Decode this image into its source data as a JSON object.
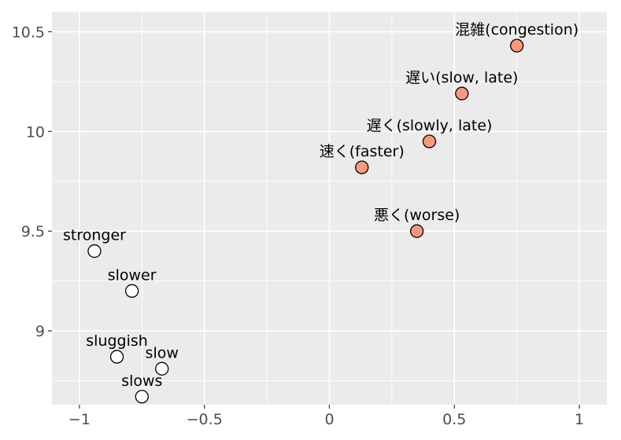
{
  "chart_data": {
    "type": "scatter",
    "title": "",
    "xlabel": "",
    "ylabel": "",
    "xlim": [
      -1.11,
      1.11
    ],
    "ylim": [
      8.63,
      10.6
    ],
    "x_ticks": [
      {
        "value": -1,
        "label": "−1"
      },
      {
        "value": -0.5,
        "label": "−0.5"
      },
      {
        "value": 0,
        "label": "0"
      },
      {
        "value": 0.5,
        "label": "0.5"
      },
      {
        "value": 1,
        "label": "1"
      }
    ],
    "y_ticks": [
      {
        "value": 9,
        "label": "9"
      },
      {
        "value": 9.5,
        "label": "9.5"
      },
      {
        "value": 10,
        "label": "10"
      },
      {
        "value": 10.5,
        "label": "10.5"
      }
    ],
    "grid": true,
    "panel_color": "#ebebeb",
    "grid_color": "#ffffff",
    "groups": {
      "english": {
        "fill": "#ffffff",
        "stroke": "#000000"
      },
      "japanese": {
        "fill": "#f8997b",
        "stroke": "#000000"
      }
    },
    "points": [
      {
        "label": "混雑(congestion)",
        "x": 0.75,
        "y": 10.43,
        "group": "japanese"
      },
      {
        "label": "遅い(slow, late)",
        "x": 0.53,
        "y": 10.19,
        "group": "japanese"
      },
      {
        "label": "遅く(slowly, late)",
        "x": 0.4,
        "y": 9.95,
        "group": "japanese"
      },
      {
        "label": "速く(faster)",
        "x": 0.13,
        "y": 9.82,
        "group": "japanese"
      },
      {
        "label": "悪く(worse)",
        "x": 0.35,
        "y": 9.5,
        "group": "japanese"
      },
      {
        "label": "stronger",
        "x": -0.94,
        "y": 9.4,
        "group": "english"
      },
      {
        "label": "slower",
        "x": -0.79,
        "y": 9.2,
        "group": "english"
      },
      {
        "label": "sluggish",
        "x": -0.85,
        "y": 8.87,
        "group": "english"
      },
      {
        "label": "slow",
        "x": -0.67,
        "y": 8.81,
        "group": "english"
      },
      {
        "label": "slows",
        "x": -0.75,
        "y": 8.67,
        "group": "english"
      }
    ]
  }
}
